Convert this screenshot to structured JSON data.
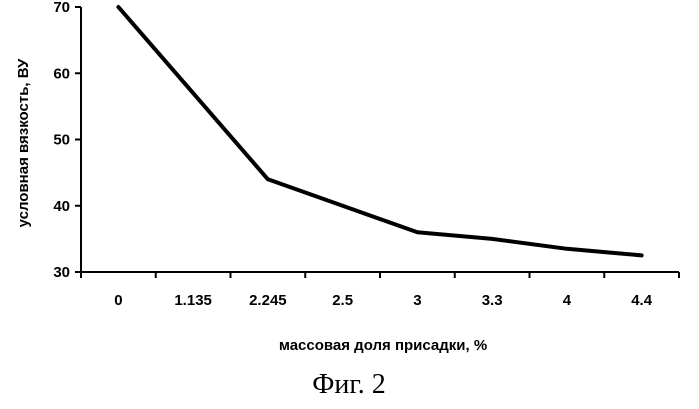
{
  "figure": {
    "caption": "Фиг. 2"
  },
  "chart_data": {
    "type": "line",
    "title": "",
    "xlabel": "массовая доля присадки, %",
    "ylabel": "условная вязкость, ВУ",
    "categories": [
      "0",
      "1.135",
      "2.245",
      "2.5",
      "3",
      "3.3",
      "4",
      "4.4"
    ],
    "series": [
      {
        "values": [
          70,
          57,
          44,
          40,
          36,
          35,
          33.5,
          32.5
        ],
        "color": "#000000"
      }
    ],
    "ylim": [
      30,
      70
    ],
    "yticks": [
      30,
      40,
      50,
      60,
      70
    ],
    "grid": false,
    "legend": "none"
  }
}
